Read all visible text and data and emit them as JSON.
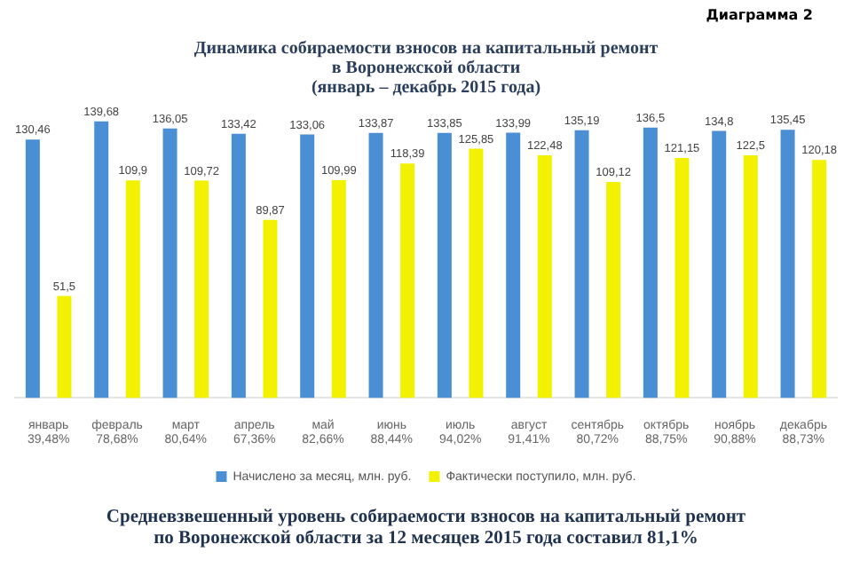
{
  "chart_data": {
    "type": "bar",
    "title": "Динамика собираемости взносов на капитальный ремонт\nв Воронежской области\n(январь – декабрь 2015 года)",
    "categories": [
      "январь 39,48%",
      "февраль 78,68%",
      "март 80,64%",
      "апрель 67,36%",
      "май 82,66%",
      "июнь 88,44%",
      "июль 94,02%",
      "август 91,41%",
      "сентябрь 80,72%",
      "октябрь 88,75%",
      "ноябрь 90,88%",
      "декабрь 88,73%"
    ],
    "series": [
      {
        "name": "Начислено за месяц, млн. руб.",
        "color": "#4a8fd4",
        "values": [
          130.46,
          139.68,
          136.05,
          133.42,
          133.06,
          133.87,
          133.85,
          133.99,
          135.19,
          136.5,
          134.8,
          135.45
        ],
        "value_labels": [
          "130,46",
          "139,68",
          "136,05",
          "133,42",
          "133,06",
          "133,87",
          "133,85",
          "133,99",
          "135,19",
          "136,5",
          "134,8",
          "135,45"
        ]
      },
      {
        "name": "Фактически поступило, млн. руб.",
        "color": "#f2f200",
        "values": [
          51.5,
          109.9,
          109.72,
          89.87,
          109.99,
          118.39,
          125.85,
          122.48,
          109.12,
          121.15,
          122.5,
          120.18
        ],
        "value_labels": [
          "51,5",
          "109,9",
          "109,72",
          "89,87",
          "109,99",
          "118,39",
          "125,85",
          "122,48",
          "109,12",
          "121,15",
          "122,5",
          "120,18"
        ]
      }
    ],
    "legend": "bottom",
    "grid": false,
    "annotations": [
      "Диаграмма 2",
      "Средневзвешенный уровень собираемости взносов на капитальный ремонт\nпо Воронежской области за 12 месяцев 2015 года составил 81,1%"
    ]
  }
}
